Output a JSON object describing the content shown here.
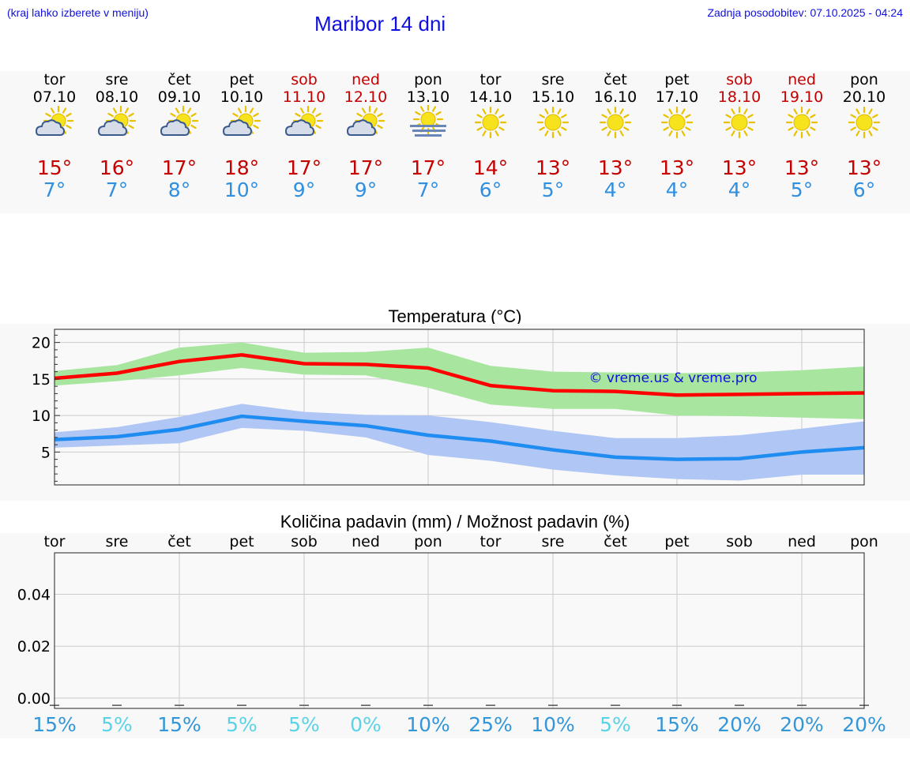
{
  "header": {
    "left_note": "(kraj lahko izberete v meniju)",
    "title": "Maribor 14 dni",
    "updated": "Zadnja posodobitev: 07.10.2025 - 04:24"
  },
  "colors": {
    "title_blue": "#1010e0",
    "weekend_red": "#c40000",
    "max_red": "#c40000",
    "min_blue": "#2f8fe0",
    "max_line": "#ff0000",
    "min_line": "#1e8cf0",
    "max_band": "#a8e6a0",
    "min_band": "#b0c6f4",
    "pct_dark": "#3396d8",
    "pct_light": "#5bd3e6"
  },
  "days": [
    {
      "name": "tor",
      "date": "07.10",
      "weekend": false,
      "icon": "partly-cloudy-icon",
      "max": "15°",
      "min": "7°"
    },
    {
      "name": "sre",
      "date": "08.10",
      "weekend": false,
      "icon": "partly-cloudy-icon",
      "max": "16°",
      "min": "7°"
    },
    {
      "name": "čet",
      "date": "09.10",
      "weekend": false,
      "icon": "partly-cloudy-icon",
      "max": "17°",
      "min": "8°"
    },
    {
      "name": "pet",
      "date": "10.10",
      "weekend": false,
      "icon": "partly-cloudy-icon",
      "max": "18°",
      "min": "10°"
    },
    {
      "name": "sob",
      "date": "11.10",
      "weekend": true,
      "icon": "partly-cloudy-icon",
      "max": "17°",
      "min": "9°"
    },
    {
      "name": "ned",
      "date": "12.10",
      "weekend": true,
      "icon": "partly-cloudy-icon",
      "max": "17°",
      "min": "9°"
    },
    {
      "name": "pon",
      "date": "13.10",
      "weekend": false,
      "icon": "sun-fog-icon",
      "max": "17°",
      "min": "7°"
    },
    {
      "name": "tor",
      "date": "14.10",
      "weekend": false,
      "icon": "sun-icon",
      "max": "14°",
      "min": "6°"
    },
    {
      "name": "sre",
      "date": "15.10",
      "weekend": false,
      "icon": "sun-icon",
      "max": "13°",
      "min": "5°"
    },
    {
      "name": "čet",
      "date": "16.10",
      "weekend": false,
      "icon": "sun-icon",
      "max": "13°",
      "min": "4°"
    },
    {
      "name": "pet",
      "date": "17.10",
      "weekend": false,
      "icon": "sun-icon",
      "max": "13°",
      "min": "4°"
    },
    {
      "name": "sob",
      "date": "18.10",
      "weekend": true,
      "icon": "sun-icon",
      "max": "13°",
      "min": "4°"
    },
    {
      "name": "ned",
      "date": "19.10",
      "weekend": true,
      "icon": "sun-icon",
      "max": "13°",
      "min": "5°"
    },
    {
      "name": "pon",
      "date": "20.10",
      "weekend": false,
      "icon": "sun-icon",
      "max": "13°",
      "min": "6°"
    }
  ],
  "chart_data": [
    {
      "type": "line",
      "title": "Temperatura (°C)",
      "watermark": "© vreme.us & vreme.pro",
      "ylim": [
        0.5,
        21.8
      ],
      "yticks": [
        5,
        10,
        15,
        20
      ],
      "ytick_labels": [
        "5",
        "10",
        "15",
        "20"
      ],
      "grid": true,
      "series": [
        {
          "name": "max",
          "values": [
            15.1,
            15.8,
            17.4,
            18.3,
            17.1,
            17.0,
            16.5,
            14.1,
            13.4,
            13.3,
            12.8,
            12.9,
            13.0,
            13.1
          ],
          "band_low": [
            14.1,
            14.7,
            15.5,
            16.5,
            15.6,
            15.5,
            13.8,
            11.5,
            10.9,
            10.9,
            10.0,
            9.9,
            9.7,
            9.5
          ],
          "band_high": [
            16.1,
            16.9,
            19.3,
            20.0,
            18.6,
            18.7,
            19.3,
            16.8,
            16.0,
            15.9,
            15.8,
            15.9,
            16.2,
            16.7
          ]
        },
        {
          "name": "min",
          "values": [
            6.7,
            7.1,
            8.1,
            9.9,
            9.2,
            8.6,
            7.3,
            6.5,
            5.3,
            4.3,
            4.0,
            4.1,
            5.0,
            5.6
          ],
          "band_low": [
            5.6,
            5.9,
            6.2,
            8.3,
            7.9,
            7.0,
            4.6,
            3.8,
            2.6,
            1.8,
            1.3,
            1.1,
            1.9,
            1.9
          ],
          "band_high": [
            7.7,
            8.4,
            9.8,
            11.6,
            10.5,
            10.1,
            10.0,
            9.1,
            7.9,
            6.9,
            6.9,
            7.3,
            8.2,
            9.2
          ]
        }
      ]
    },
    {
      "type": "bar",
      "title": "Količina padavin (mm) / Možnost padavin (%)",
      "categories": [
        "tor",
        "sre",
        "čet",
        "pet",
        "sob",
        "ned",
        "pon",
        "tor",
        "sre",
        "čet",
        "pet",
        "sob",
        "ned",
        "pon"
      ],
      "values": [
        0,
        0,
        0,
        0,
        0,
        0,
        0,
        0,
        0,
        0,
        0,
        0,
        0,
        0
      ],
      "ylim": [
        -0.004,
        0.056
      ],
      "yticks": [
        0.0,
        0.02,
        0.04
      ],
      "ytick_labels": [
        "0.00",
        "0.02",
        "0.04"
      ],
      "grid": true,
      "probability_labels": [
        "15%",
        "5%",
        "15%",
        "5%",
        "5%",
        "0%",
        "10%",
        "25%",
        "10%",
        "5%",
        "15%",
        "20%",
        "20%",
        "20%"
      ],
      "probability_values": [
        15,
        5,
        15,
        5,
        5,
        0,
        10,
        25,
        10,
        5,
        15,
        20,
        20,
        20
      ]
    }
  ]
}
